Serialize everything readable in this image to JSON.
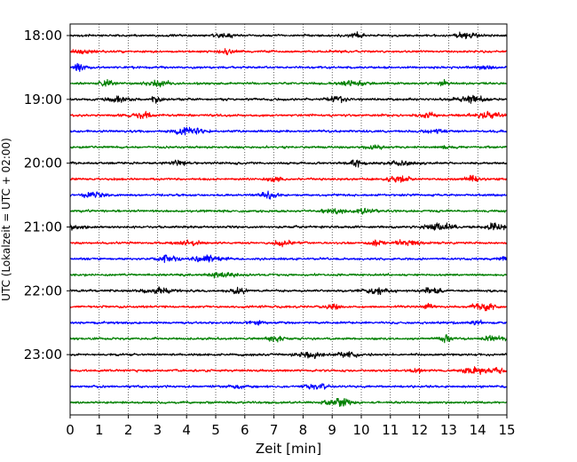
{
  "chart_data": {
    "type": "line",
    "title": "",
    "xlabel": "Zeit  [min]",
    "ylabel": "UTC (Lokalzeit = UTC + 02:00)",
    "xlim": [
      0,
      15
    ],
    "x_ticks": [
      "0",
      "1",
      "2",
      "3",
      "4",
      "5",
      "6",
      "7",
      "8",
      "9",
      "10",
      "11",
      "12",
      "13",
      "14",
      "15"
    ],
    "y_tick_labels": [
      "18:00",
      "19:00",
      "20:00",
      "21:00",
      "22:00",
      "23:00"
    ],
    "grid": "vertical dotted lines at each minute",
    "trace_start": "18:00",
    "trace_interval_minutes": 15,
    "trace_count": 24,
    "trace_colors": [
      "#000000",
      "#ff0000",
      "#0000ff",
      "#008000"
    ],
    "series": [
      {
        "start": "18:00",
        "color": "#000000"
      },
      {
        "start": "18:15",
        "color": "#ff0000"
      },
      {
        "start": "18:30",
        "color": "#0000ff"
      },
      {
        "start": "18:45",
        "color": "#008000"
      },
      {
        "start": "19:00",
        "color": "#000000"
      },
      {
        "start": "19:15",
        "color": "#ff0000"
      },
      {
        "start": "19:30",
        "color": "#0000ff"
      },
      {
        "start": "19:45",
        "color": "#008000"
      },
      {
        "start": "20:00",
        "color": "#000000"
      },
      {
        "start": "20:15",
        "color": "#ff0000"
      },
      {
        "start": "20:30",
        "color": "#0000ff"
      },
      {
        "start": "20:45",
        "color": "#008000"
      },
      {
        "start": "21:00",
        "color": "#000000"
      },
      {
        "start": "21:15",
        "color": "#ff0000"
      },
      {
        "start": "21:30",
        "color": "#0000ff"
      },
      {
        "start": "21:45",
        "color": "#008000"
      },
      {
        "start": "22:00",
        "color": "#000000"
      },
      {
        "start": "22:15",
        "color": "#ff0000"
      },
      {
        "start": "22:30",
        "color": "#0000ff"
      },
      {
        "start": "22:45",
        "color": "#008000"
      },
      {
        "start": "23:00",
        "color": "#000000"
      },
      {
        "start": "23:15",
        "color": "#ff0000"
      },
      {
        "start": "23:30",
        "color": "#0000ff"
      },
      {
        "start": "23:45",
        "color": "#008000"
      }
    ]
  }
}
